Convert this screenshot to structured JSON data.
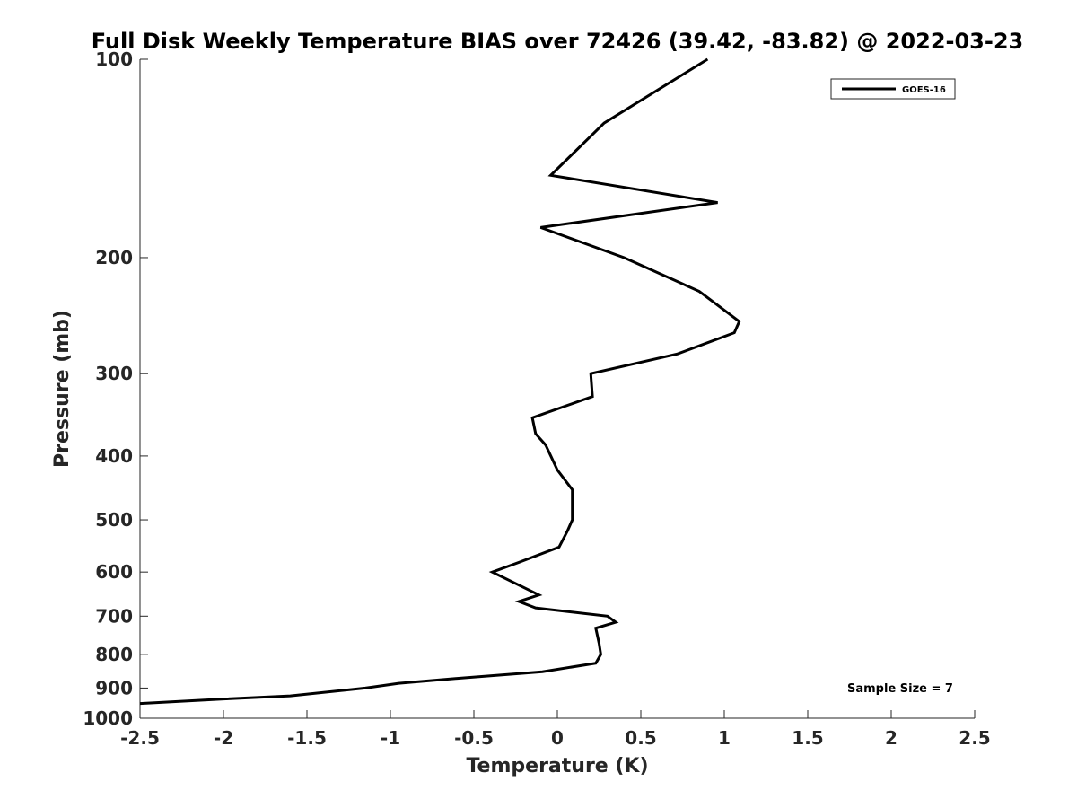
{
  "chart_data": {
    "type": "line",
    "title": "Full Disk Weekly Temperature BIAS over 72426 (39.42, -83.82) @ 2022-03-23",
    "xlabel": "Temperature (K)",
    "ylabel": "Pressure (mb)",
    "xlim": [
      -2.5,
      2.5
    ],
    "ylim": [
      100,
      1000
    ],
    "y_scale": "log",
    "y_reversed": true,
    "grid": false,
    "legend_position": "top-right",
    "x_ticks": [
      -2.5,
      -2,
      -1.5,
      -1,
      -0.5,
      0,
      0.5,
      1,
      1.5,
      2,
      2.5
    ],
    "x_tick_labels": [
      "-2.5",
      "-2",
      "-1.5",
      "-1",
      "-0.5",
      "0",
      "0.5",
      "1",
      "1.5",
      "2",
      "2.5"
    ],
    "y_ticks": [
      100,
      200,
      300,
      400,
      500,
      600,
      700,
      800,
      900,
      1000
    ],
    "y_tick_labels": [
      "100",
      "200",
      "300",
      "400",
      "500",
      "600",
      "700",
      "800",
      "900",
      "1000"
    ],
    "annotation": "Sample Size = 7",
    "series": [
      {
        "name": "GOES-16",
        "color": "#000000",
        "points": [
          {
            "x": 0.9,
            "y": 100
          },
          {
            "x": 0.28,
            "y": 125
          },
          {
            "x": -0.04,
            "y": 150
          },
          {
            "x": 0.96,
            "y": 165
          },
          {
            "x": -0.1,
            "y": 180
          },
          {
            "x": 0.4,
            "y": 200
          },
          {
            "x": 0.85,
            "y": 225
          },
          {
            "x": 1.09,
            "y": 250
          },
          {
            "x": 1.06,
            "y": 260
          },
          {
            "x": 0.72,
            "y": 280
          },
          {
            "x": 0.2,
            "y": 300
          },
          {
            "x": 0.21,
            "y": 325
          },
          {
            "x": -0.15,
            "y": 350
          },
          {
            "x": -0.13,
            "y": 370
          },
          {
            "x": -0.07,
            "y": 385
          },
          {
            "x": 0.0,
            "y": 420
          },
          {
            "x": 0.09,
            "y": 450
          },
          {
            "x": 0.09,
            "y": 500
          },
          {
            "x": 0.06,
            "y": 520
          },
          {
            "x": 0.01,
            "y": 550
          },
          {
            "x": -0.23,
            "y": 580
          },
          {
            "x": -0.39,
            "y": 600
          },
          {
            "x": -0.11,
            "y": 650
          },
          {
            "x": -0.23,
            "y": 665
          },
          {
            "x": -0.13,
            "y": 680
          },
          {
            "x": 0.3,
            "y": 700
          },
          {
            "x": 0.35,
            "y": 715
          },
          {
            "x": 0.23,
            "y": 730
          },
          {
            "x": 0.25,
            "y": 770
          },
          {
            "x": 0.26,
            "y": 800
          },
          {
            "x": 0.23,
            "y": 825
          },
          {
            "x": -0.09,
            "y": 850
          },
          {
            "x": -0.6,
            "y": 870
          },
          {
            "x": -0.95,
            "y": 885
          },
          {
            "x": -1.15,
            "y": 900
          },
          {
            "x": -1.6,
            "y": 925
          },
          {
            "x": -2.0,
            "y": 935
          },
          {
            "x": -2.5,
            "y": 950
          }
        ]
      }
    ]
  }
}
